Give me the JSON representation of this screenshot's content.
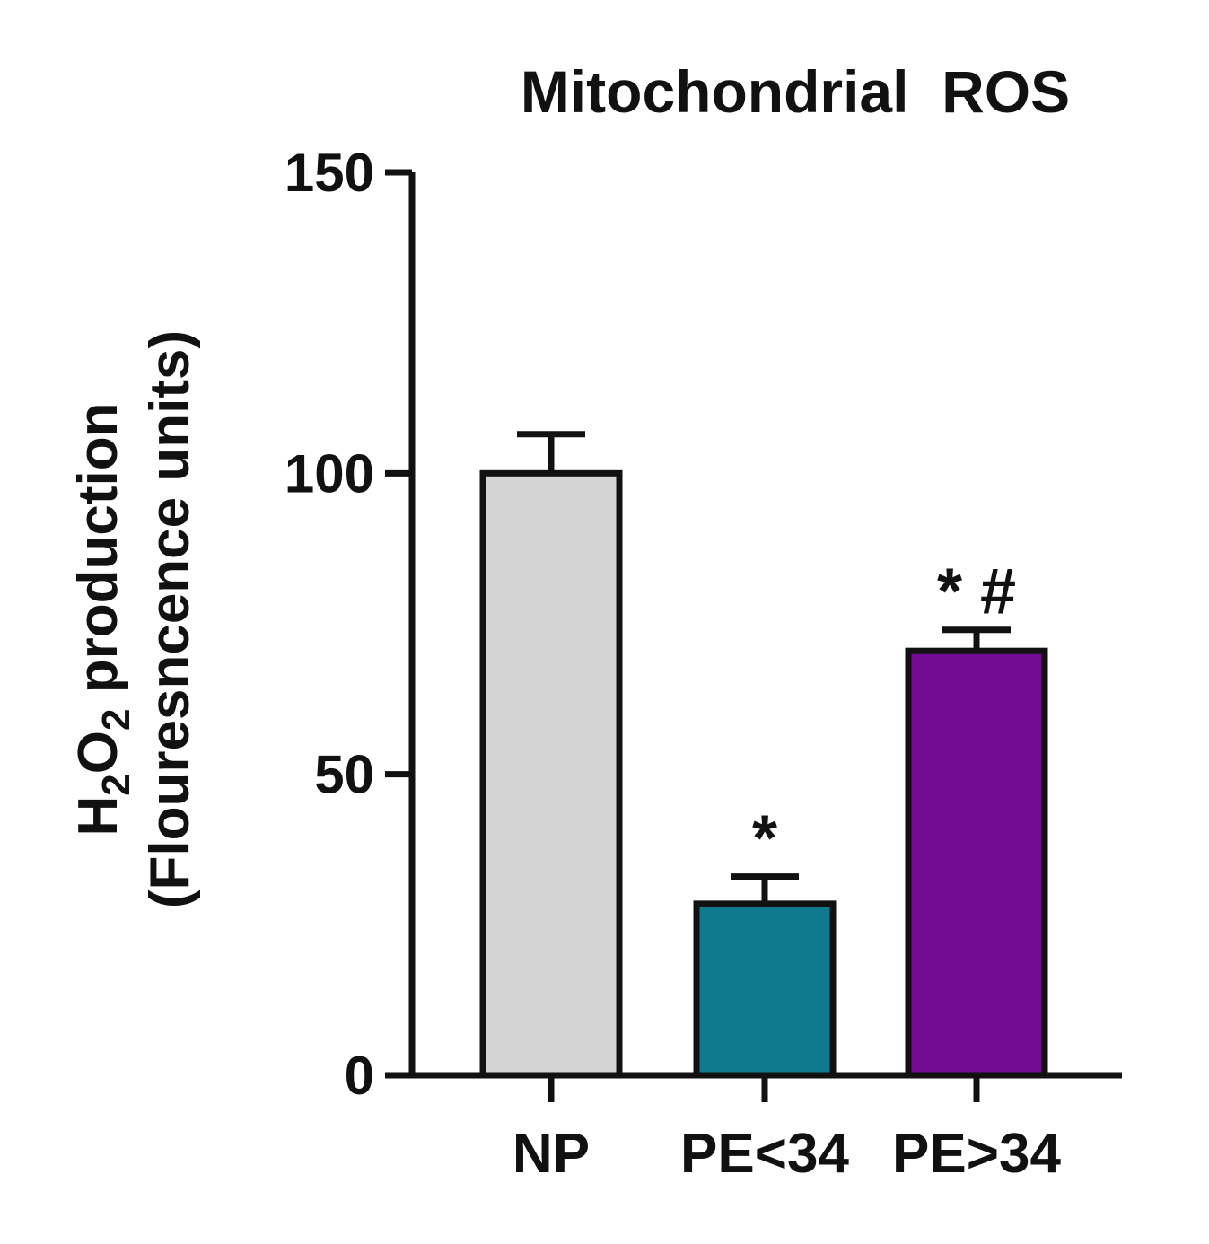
{
  "chart_data": {
    "type": "bar",
    "title": "Mitochondrial  ROS",
    "ylabel": {
      "line1_prefix": "H",
      "line1_sub1": "2",
      "line1_mid": "O",
      "line1_sub2": "2",
      "line1_suffix": " production",
      "line2": "(Flouresncence units)"
    },
    "xlabel": "",
    "ylim": [
      0,
      150
    ],
    "yticks": [
      0,
      50,
      100,
      150
    ],
    "categories": [
      "NP",
      "PE<34",
      "PE>34"
    ],
    "values": [
      100,
      28.5,
      70.5
    ],
    "errors": [
      6.5,
      4.5,
      3.5
    ],
    "annotations": [
      "",
      "*",
      "* #"
    ],
    "colors": [
      "#d4d4d4",
      "#0f7a8e",
      "#730c92"
    ],
    "grid": false,
    "legend": "none"
  }
}
